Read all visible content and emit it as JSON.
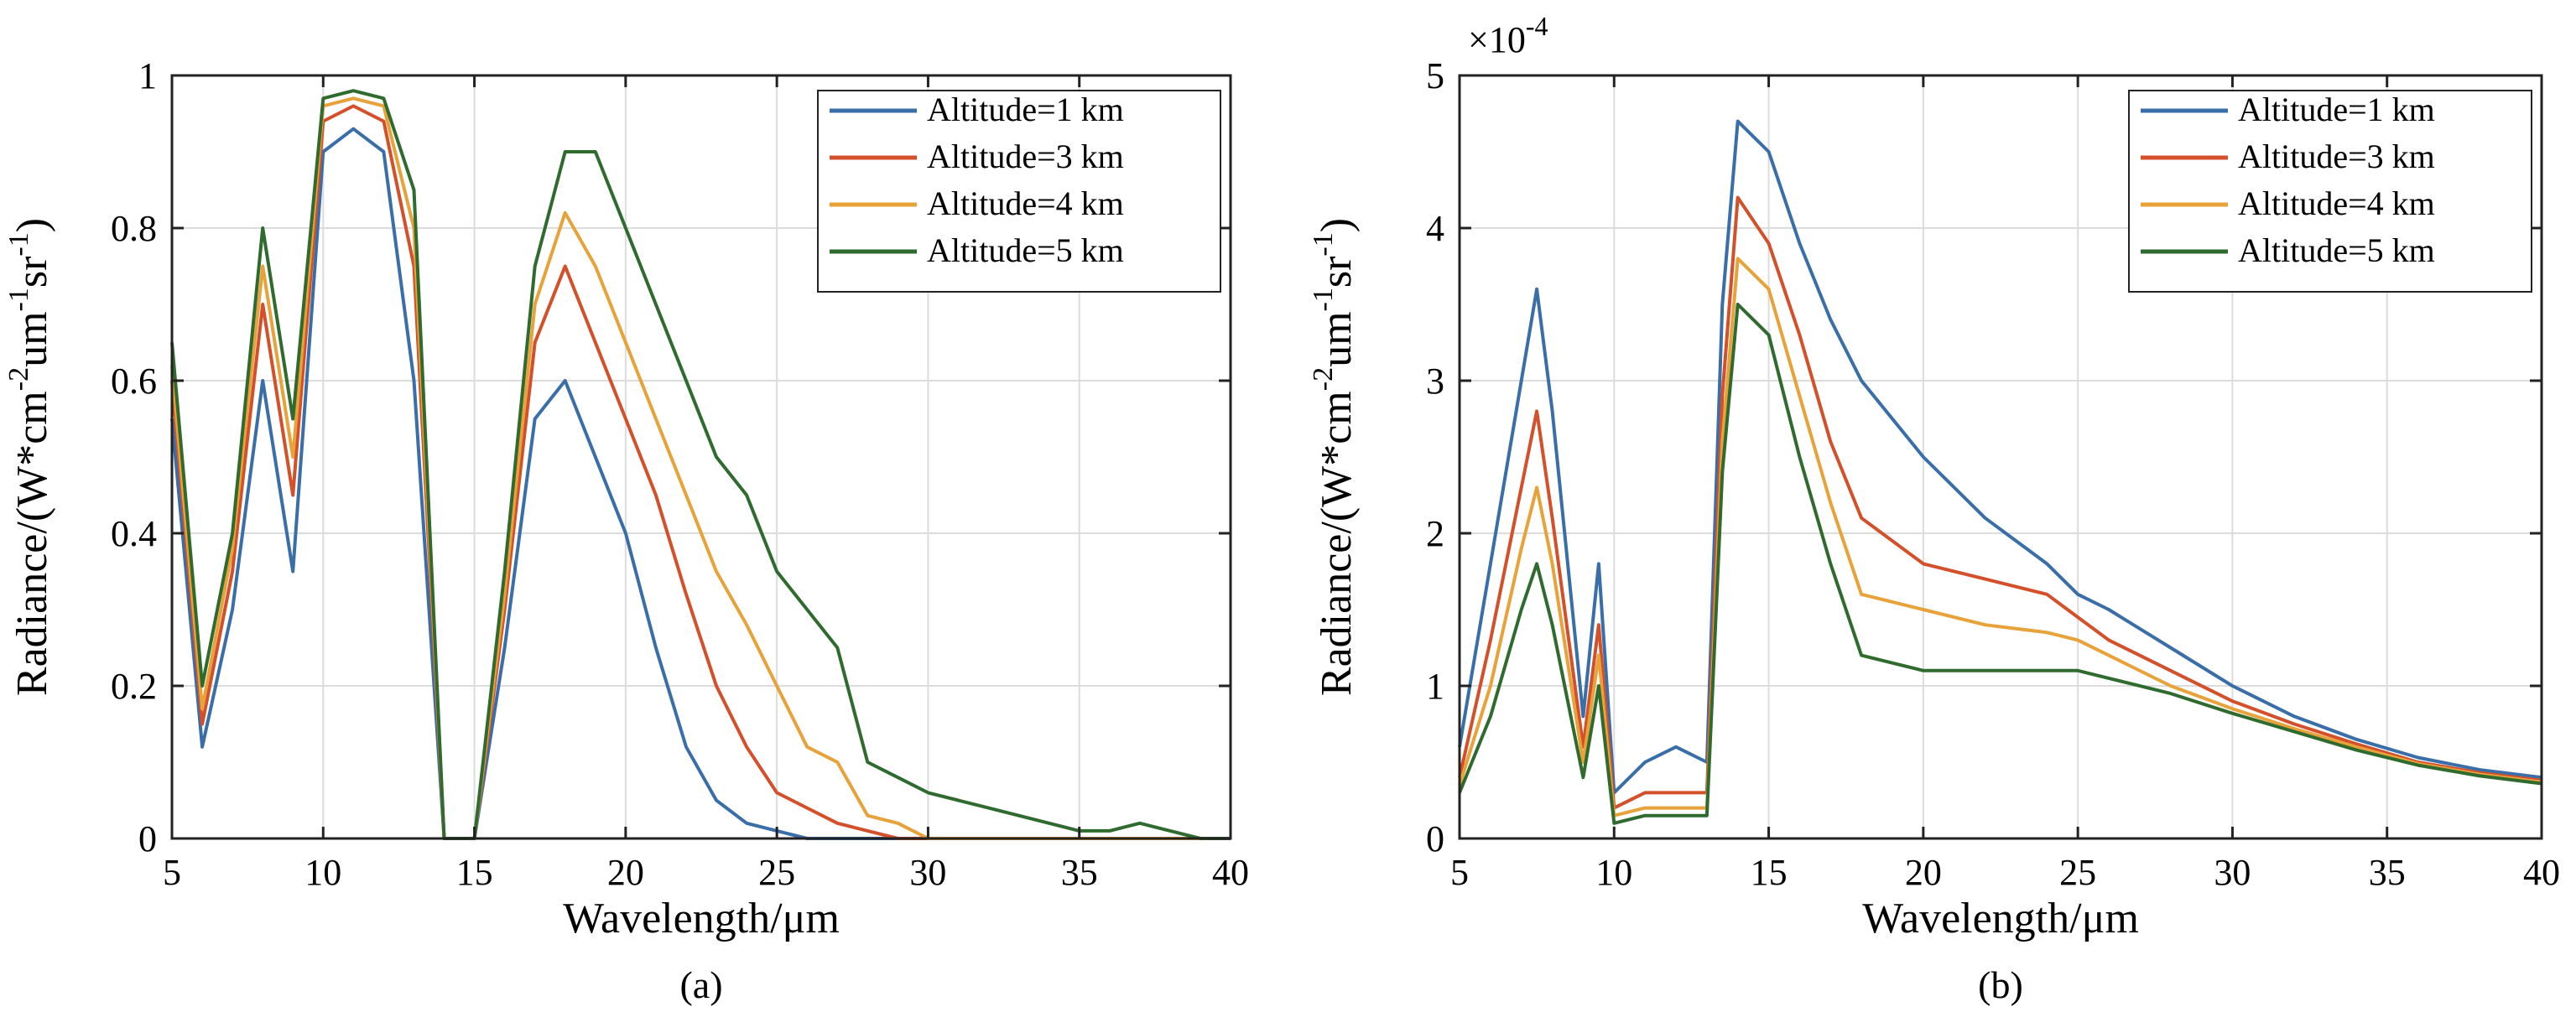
{
  "chart_data": [
    {
      "type": "line",
      "caption": "(a)",
      "xlabel": "Wavelength/μm",
      "ylabel": "Radiance/(W*cm⁻²um⁻¹sr⁻¹)",
      "ylabel_parts": [
        "Radiance/(W*cm",
        "-2",
        "um",
        "-1",
        "sr",
        "-1",
        ")"
      ],
      "xlim": [
        5,
        40
      ],
      "ylim": [
        0,
        1
      ],
      "xticks": [
        "5",
        "10",
        "15",
        "20",
        "25",
        "30",
        "35",
        "40"
      ],
      "yticks": [
        "0",
        "0.2",
        "0.4",
        "0.6",
        "0.8",
        "1"
      ],
      "grid": true,
      "legend_position": "top-right",
      "series": [
        {
          "name": "Altitude=1 km",
          "color": "#3a6ea8",
          "x": [
            5,
            6,
            7,
            8,
            9,
            10,
            11,
            12,
            13,
            14,
            15,
            16,
            17,
            18,
            19,
            20,
            21,
            22,
            23,
            24,
            25,
            26,
            27,
            28,
            29,
            30,
            31,
            32,
            33,
            34,
            35,
            36,
            37,
            38,
            39,
            40
          ],
          "y": [
            0.55,
            0.12,
            0.3,
            0.6,
            0.35,
            0.9,
            0.93,
            0.9,
            0.6,
            0.0,
            0.0,
            0.25,
            0.55,
            0.6,
            0.5,
            0.4,
            0.25,
            0.12,
            0.05,
            0.02,
            0.01,
            0.0,
            0.0,
            0.0,
            0.0,
            0.0,
            0.0,
            0.0,
            0.0,
            0.0,
            0.0,
            0.0,
            0.0,
            0.0,
            0.0,
            0.0
          ]
        },
        {
          "name": "Altitude=3 km",
          "color": "#d4502a",
          "x": [
            5,
            6,
            7,
            8,
            9,
            10,
            11,
            12,
            13,
            14,
            15,
            16,
            17,
            18,
            19,
            20,
            21,
            22,
            23,
            24,
            25,
            26,
            27,
            28,
            29,
            30,
            31,
            32,
            33,
            34,
            35,
            36,
            37,
            38,
            39,
            40
          ],
          "y": [
            0.6,
            0.15,
            0.35,
            0.7,
            0.45,
            0.94,
            0.96,
            0.94,
            0.75,
            0.0,
            0.0,
            0.3,
            0.65,
            0.75,
            0.65,
            0.55,
            0.45,
            0.32,
            0.2,
            0.12,
            0.06,
            0.04,
            0.02,
            0.01,
            0.0,
            0.0,
            0.0,
            0.0,
            0.0,
            0.0,
            0.0,
            0.0,
            0.0,
            0.0,
            0.0,
            0.0
          ]
        },
        {
          "name": "Altitude=4 km",
          "color": "#e8a23a",
          "x": [
            5,
            6,
            7,
            8,
            9,
            10,
            11,
            12,
            13,
            14,
            15,
            16,
            17,
            18,
            19,
            20,
            21,
            22,
            23,
            24,
            25,
            26,
            27,
            28,
            29,
            30,
            31,
            32,
            33,
            34,
            35,
            36,
            37,
            38,
            39,
            40
          ],
          "y": [
            0.62,
            0.17,
            0.38,
            0.75,
            0.5,
            0.96,
            0.97,
            0.96,
            0.8,
            0.0,
            0.0,
            0.32,
            0.7,
            0.82,
            0.75,
            0.65,
            0.55,
            0.45,
            0.35,
            0.28,
            0.2,
            0.12,
            0.1,
            0.03,
            0.02,
            0.0,
            0.0,
            0.0,
            0.0,
            0.0,
            0.0,
            0.0,
            0.0,
            0.0,
            0.0,
            0.0
          ]
        },
        {
          "name": "Altitude=5 km",
          "color": "#2f6b2f",
          "x": [
            5,
            6,
            7,
            8,
            9,
            10,
            11,
            12,
            13,
            14,
            15,
            16,
            17,
            18,
            19,
            20,
            21,
            22,
            23,
            24,
            25,
            26,
            27,
            28,
            29,
            30,
            31,
            32,
            33,
            34,
            35,
            36,
            37,
            38,
            39,
            40
          ],
          "y": [
            0.65,
            0.2,
            0.4,
            0.8,
            0.55,
            0.97,
            0.98,
            0.97,
            0.85,
            0.0,
            0.0,
            0.35,
            0.75,
            0.9,
            0.9,
            0.8,
            0.7,
            0.6,
            0.5,
            0.45,
            0.35,
            0.3,
            0.25,
            0.1,
            0.08,
            0.06,
            0.05,
            0.04,
            0.03,
            0.02,
            0.01,
            0.01,
            0.02,
            0.01,
            0.0,
            0.0
          ]
        }
      ]
    },
    {
      "type": "line",
      "caption": "(b)",
      "xlabel": "Wavelength/μm",
      "ylabel": "Radiance/(W*cm⁻²um⁻¹sr⁻¹)",
      "ylabel_parts": [
        "Radiance/(W*cm",
        "-2",
        "um",
        "-1",
        "sr",
        "-1",
        ")"
      ],
      "xlim": [
        5,
        40
      ],
      "ylim": [
        0,
        5
      ],
      "exponent_label": "×10",
      "exponent_power": "-4",
      "xticks": [
        "5",
        "10",
        "15",
        "20",
        "25",
        "30",
        "35",
        "40"
      ],
      "yticks": [
        "0",
        "1",
        "2",
        "3",
        "4",
        "5"
      ],
      "grid": true,
      "legend_position": "top-right",
      "series": [
        {
          "name": "Altitude=1 km",
          "color": "#3a6ea8",
          "x": [
            5,
            6,
            7,
            7.5,
            8,
            9,
            9.5,
            10,
            11,
            12,
            13,
            13.5,
            14,
            15,
            16,
            17,
            18,
            20,
            22,
            24,
            25,
            26,
            28,
            30,
            32,
            34,
            36,
            38,
            40
          ],
          "y": [
            0.6,
            1.8,
            3.0,
            3.6,
            2.8,
            0.8,
            1.8,
            0.3,
            0.5,
            0.6,
            0.5,
            3.5,
            4.7,
            4.5,
            3.9,
            3.4,
            3.0,
            2.5,
            2.1,
            1.8,
            1.6,
            1.5,
            1.25,
            1.0,
            0.8,
            0.65,
            0.53,
            0.45,
            0.4
          ]
        },
        {
          "name": "Altitude=3 km",
          "color": "#d4502a",
          "x": [
            5,
            6,
            7,
            7.5,
            8,
            9,
            9.5,
            10,
            11,
            12,
            13,
            13.5,
            14,
            15,
            16,
            17,
            18,
            20,
            22,
            24,
            25,
            26,
            28,
            30,
            32,
            34,
            36,
            38,
            40
          ],
          "y": [
            0.4,
            1.3,
            2.3,
            2.8,
            2.1,
            0.6,
            1.4,
            0.2,
            0.3,
            0.3,
            0.3,
            2.9,
            4.2,
            3.9,
            3.3,
            2.6,
            2.1,
            1.8,
            1.7,
            1.6,
            1.45,
            1.3,
            1.1,
            0.9,
            0.75,
            0.62,
            0.5,
            0.43,
            0.38
          ]
        },
        {
          "name": "Altitude=4 km",
          "color": "#e8a23a",
          "x": [
            5,
            6,
            7,
            7.5,
            8,
            9,
            9.5,
            10,
            11,
            12,
            13,
            13.5,
            14,
            15,
            16,
            17,
            18,
            20,
            22,
            24,
            25,
            26,
            28,
            30,
            32,
            34,
            36,
            38,
            40
          ],
          "y": [
            0.35,
            1.0,
            1.9,
            2.3,
            1.8,
            0.5,
            1.2,
            0.15,
            0.2,
            0.2,
            0.2,
            2.6,
            3.8,
            3.6,
            2.9,
            2.2,
            1.6,
            1.5,
            1.4,
            1.35,
            1.3,
            1.2,
            1.0,
            0.85,
            0.72,
            0.6,
            0.49,
            0.42,
            0.37
          ]
        },
        {
          "name": "Altitude=5 km",
          "color": "#2f6b2f",
          "x": [
            5,
            6,
            7,
            7.5,
            8,
            9,
            9.5,
            10,
            11,
            12,
            13,
            13.5,
            14,
            15,
            16,
            17,
            18,
            20,
            22,
            24,
            25,
            26,
            28,
            30,
            32,
            34,
            36,
            38,
            40
          ],
          "y": [
            0.3,
            0.8,
            1.5,
            1.8,
            1.4,
            0.4,
            1.0,
            0.1,
            0.15,
            0.15,
            0.15,
            2.4,
            3.5,
            3.3,
            2.5,
            1.8,
            1.2,
            1.1,
            1.1,
            1.1,
            1.1,
            1.05,
            0.95,
            0.82,
            0.7,
            0.58,
            0.48,
            0.41,
            0.36
          ]
        }
      ]
    }
  ]
}
